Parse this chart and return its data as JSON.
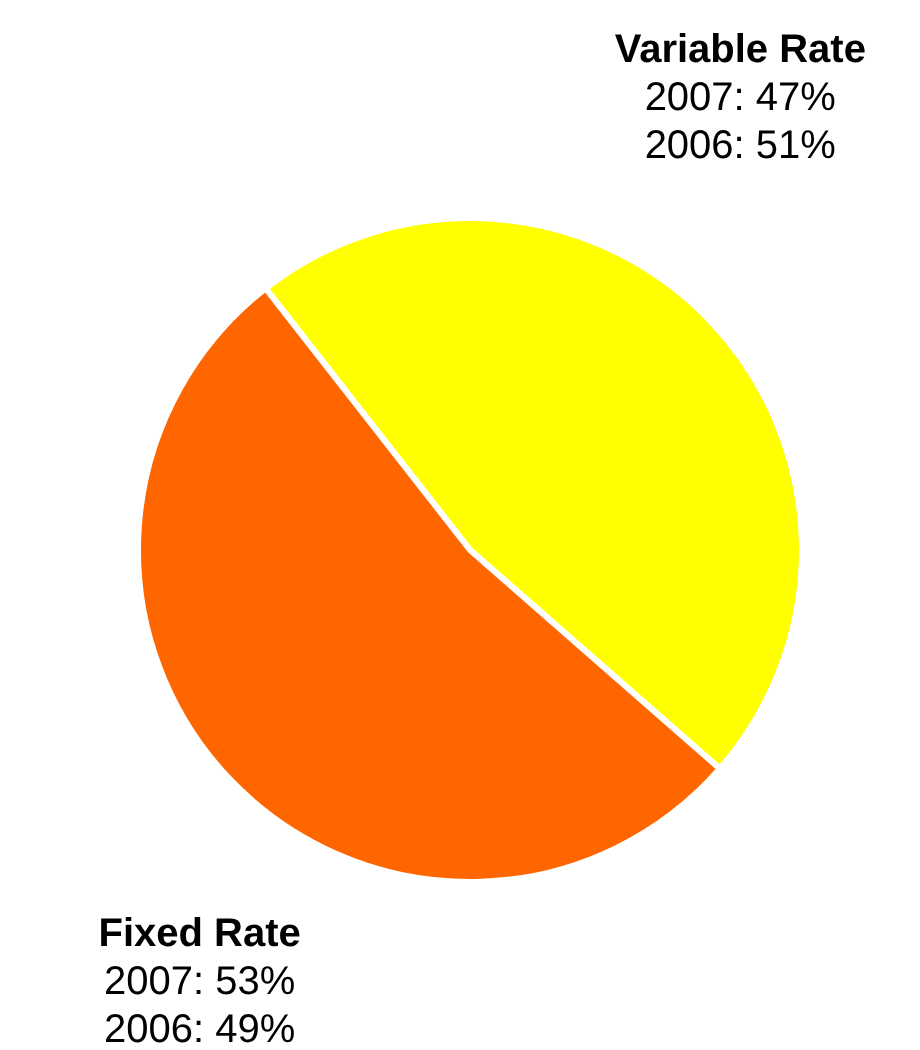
{
  "chart_data": {
    "type": "pie",
    "categories": [
      "Variable Rate",
      "Fixed Rate"
    ],
    "values": [
      47,
      53
    ],
    "colors": [
      "#ffff00",
      "#ff6600"
    ],
    "value_labels": [
      "2007: 47%\n2006: 51%",
      "2007: 53%\n2006: 49%"
    ]
  }
}
